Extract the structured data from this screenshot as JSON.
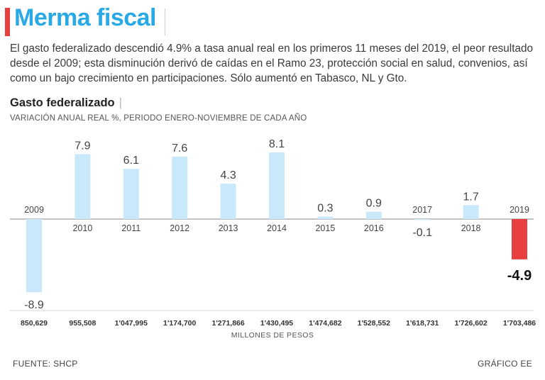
{
  "header": {
    "title": "Merma fiscal",
    "intro": "El gasto federalizado descendió 4.9% a tasa anual real en los primeros 11 meses del 2019, el peor resultado desde el 2009; esta disminución derivó de caídas en el Ramo 23, protección social en salud, convenios, así como un bajo crecimiento en participaciones. Sólo aumentó en Tabasco, NL y Gto.",
    "subtitle": "Gasto federalizado",
    "subtitle_sep": "|",
    "note": "VARIACIÓN ANUAL REAL %, PERIODO ENERO-NOVIEMBRE DE CADA AÑO"
  },
  "chart_data": {
    "type": "bar",
    "title": "Gasto federalizado",
    "subtitle": "VARIACIÓN ANUAL REAL %, PERIODO ENERO-NOVIEMBRE DE CADA AÑO",
    "categories": [
      "2009",
      "2010",
      "2011",
      "2012",
      "2013",
      "2014",
      "2015",
      "2016",
      "2017",
      "2018",
      "2019"
    ],
    "values": [
      -8.9,
      7.9,
      6.1,
      7.6,
      4.3,
      8.1,
      0.3,
      0.9,
      -0.1,
      1.7,
      -4.9
    ],
    "value_labels": [
      "-8.9",
      "7.9",
      "6.1",
      "7.6",
      "4.3",
      "8.1",
      "0.3",
      "0.9",
      "-0.1",
      "1.7",
      "-4.9"
    ],
    "amounts": [
      "850,629",
      "955,508",
      "1'047,995",
      "1'174,700",
      "1'271,866",
      "1'430,495",
      "1'474,682",
      "1'528,552",
      "1'618,731",
      "1'726,602",
      "1'703,486"
    ],
    "amounts_label": "MILLONES DE PESOS",
    "highlight_index": 10,
    "ylim": [
      -8.9,
      8.1
    ],
    "grid": false,
    "colors": {
      "bar": "#c9e8f9",
      "highlight": "#e8403f",
      "axis": "#8a8a8a"
    }
  },
  "footer": {
    "source": "FUENTE: SHCP",
    "credit": "GRÁFICO EE"
  }
}
